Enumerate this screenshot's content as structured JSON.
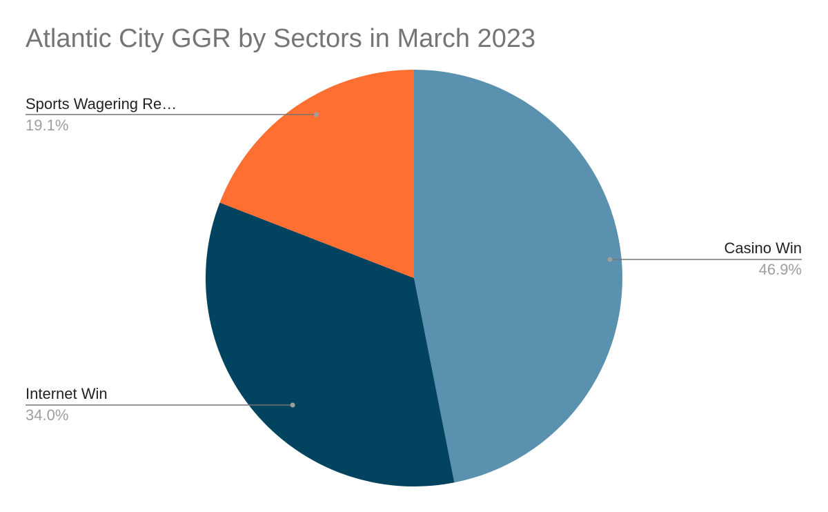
{
  "chart_data": {
    "type": "pie",
    "title": "Atlantic City GGR by Sectors in March 2023",
    "slices": [
      {
        "label": "Casino Win",
        "display_label": "Casino Win",
        "value": 46.9,
        "percent_label": "46.9%",
        "color": "#5a91ae"
      },
      {
        "label": "Internet Win",
        "display_label": "Internet Win",
        "value": 34.0,
        "percent_label": "34.0%",
        "color": "#02435f"
      },
      {
        "label": "Sports Wagering Re…",
        "display_label": "Sports Wagering Re…",
        "value": 19.1,
        "percent_label": "19.1%",
        "color": "#fe6f31"
      }
    ],
    "start_angle": "12 o'clock",
    "direction": "clockwise",
    "leader_line_color": "#757575",
    "legend": "none"
  }
}
